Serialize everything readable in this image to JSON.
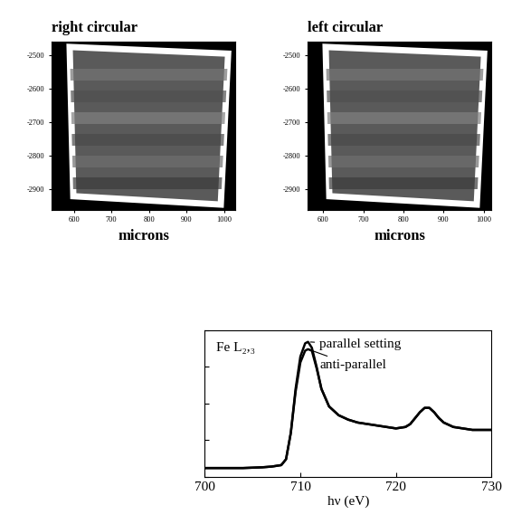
{
  "chart_data": [
    {
      "type": "image",
      "title": "right circular",
      "x_label": "microns",
      "xlim": [
        540,
        1030
      ],
      "ylim": [
        -2960,
        -2460
      ],
      "xticks": [
        600,
        700,
        800,
        900,
        1000
      ],
      "yticks": [
        -2900,
        -2800,
        -2700,
        -2600,
        -2500
      ]
    },
    {
      "type": "image",
      "title": "left circular",
      "x_label": "microns",
      "xlim": [
        560,
        1020
      ],
      "ylim": [
        -2960,
        -2460
      ],
      "xticks": [
        600,
        700,
        800,
        900,
        1000
      ],
      "yticks": [
        -2900,
        -2800,
        -2700,
        -2600,
        -2500
      ]
    },
    {
      "type": "line",
      "annotation": "Fe L₂,₃",
      "x_label": "hν (eV)",
      "x": [
        700,
        702,
        704,
        706,
        707,
        708,
        708.5,
        709,
        709.5,
        710,
        710.5,
        710.8,
        711.2,
        711.7,
        712.2,
        713,
        714,
        715,
        716,
        717,
        718,
        719,
        720,
        721,
        721.5,
        722,
        722.5,
        723,
        723.5,
        724,
        724.5,
        725,
        726,
        727,
        728,
        730
      ],
      "series": [
        {
          "name": "parallel setting",
          "color": "#000000",
          "values": [
            0.06,
            0.06,
            0.06,
            0.065,
            0.07,
            0.08,
            0.12,
            0.3,
            0.6,
            0.82,
            0.91,
            0.92,
            0.88,
            0.75,
            0.6,
            0.48,
            0.42,
            0.39,
            0.37,
            0.36,
            0.35,
            0.34,
            0.33,
            0.34,
            0.36,
            0.4,
            0.44,
            0.47,
            0.47,
            0.44,
            0.4,
            0.37,
            0.34,
            0.33,
            0.32,
            0.32
          ]
        },
        {
          "name": "anti-parallel",
          "color": "#000000",
          "values": [
            0.06,
            0.06,
            0.06,
            0.065,
            0.07,
            0.08,
            0.12,
            0.3,
            0.58,
            0.78,
            0.86,
            0.87,
            0.86,
            0.74,
            0.6,
            0.48,
            0.42,
            0.39,
            0.37,
            0.36,
            0.35,
            0.34,
            0.33,
            0.34,
            0.36,
            0.4,
            0.44,
            0.47,
            0.47,
            0.44,
            0.4,
            0.37,
            0.34,
            0.33,
            0.32,
            0.32
          ]
        }
      ],
      "xlim": [
        700,
        730
      ],
      "ylim": [
        0,
        1
      ],
      "xticks": [
        700,
        710,
        720,
        730
      ],
      "yticks": [
        0,
        0.25,
        0.5,
        0.75,
        1
      ],
      "tick_labels": "x"
    }
  ]
}
